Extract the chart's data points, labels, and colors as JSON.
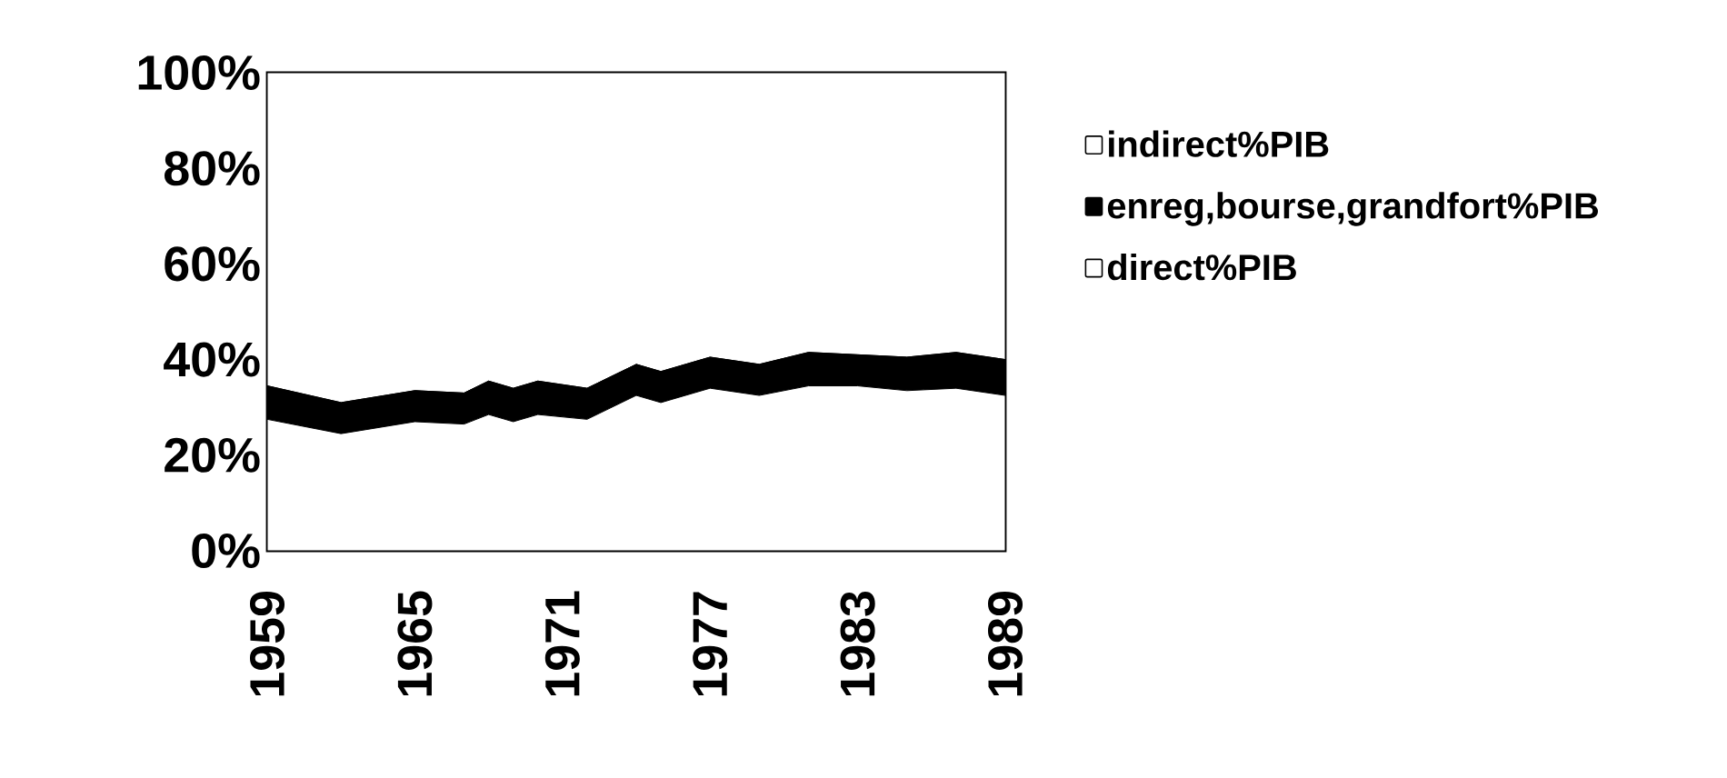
{
  "chart_data": {
    "type": "area",
    "stacked": true,
    "x": [
      1959,
      1962,
      1965,
      1967,
      1968,
      1969,
      1970,
      1972,
      1974,
      1975,
      1977,
      1979,
      1981,
      1983,
      1985,
      1987,
      1989
    ],
    "series": [
      {
        "name": "direct%PIB",
        "color": "#ffffff",
        "values": [
          27.5,
          24.5,
          27,
          26.5,
          28.5,
          27,
          28.5,
          27.5,
          32.5,
          31,
          34,
          32.5,
          34.5,
          34.5,
          33.5,
          34,
          32.5
        ]
      },
      {
        "name": "enreg,bourse,grandfort%PIB",
        "color": "#000000",
        "values": [
          7,
          6.5,
          6.5,
          6.5,
          7,
          7,
          7,
          6.5,
          6.5,
          6.5,
          6.5,
          6.5,
          7,
          6.5,
          7,
          7.5,
          7.5
        ]
      },
      {
        "name": "indirect%PIB",
        "color": "#ffffff",
        "values": [
          65.5,
          69,
          66.5,
          67,
          64.5,
          66,
          64.5,
          66,
          61,
          62.5,
          59.5,
          61,
          58.5,
          59,
          59.5,
          58.5,
          60
        ]
      }
    ],
    "xlim": [
      1959,
      1989
    ],
    "xticks": [
      1959,
      1965,
      1971,
      1977,
      1983,
      1989
    ],
    "ylim": [
      0,
      100
    ],
    "yticks": [
      {
        "value": 0,
        "label": "0%"
      },
      {
        "value": 20,
        "label": "20%"
      },
      {
        "value": 40,
        "label": "40%"
      },
      {
        "value": 60,
        "label": "60%"
      },
      {
        "value": 80,
        "label": "80%"
      },
      {
        "value": 100,
        "label": "100%"
      }
    ],
    "legend": "right"
  }
}
